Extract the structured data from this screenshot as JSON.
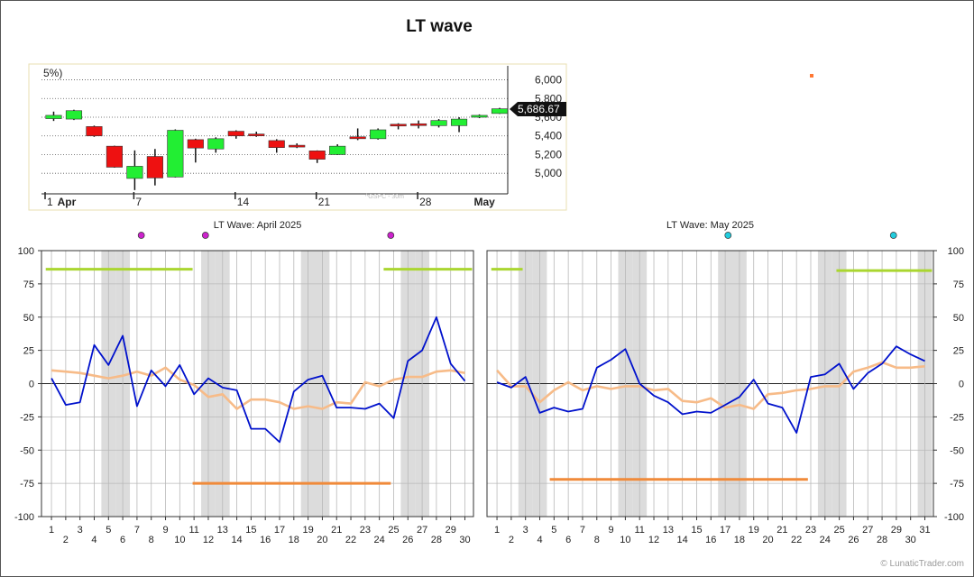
{
  "page": {
    "title": "LT wave",
    "footer": "© LunaticTrader.com"
  },
  "chart_data": [
    {
      "type": "candlestick",
      "partial_label": "5%)",
      "yticks": [
        5000,
        5200,
        5400,
        5600,
        5800,
        6000
      ],
      "ytick_labels": [
        "5,000",
        "5,200",
        "5,400",
        "5,600",
        "5,800",
        "6,000"
      ],
      "ylim": [
        4780,
        6150
      ],
      "last_value_label": "5,686.67",
      "last_value": 5686.67,
      "watermark": "^GSPC - 30m",
      "xtick_labels": [
        {
          "label": "1",
          "bold": false,
          "index": 0
        },
        {
          "label": "Apr",
          "bold": true,
          "index": 0.45
        },
        {
          "label": "7",
          "bold": false,
          "index": 4
        },
        {
          "label": "14",
          "bold": false,
          "index": 9
        },
        {
          "label": "21",
          "bold": false,
          "index": 13
        },
        {
          "label": "28",
          "bold": false,
          "index": 18
        },
        {
          "label": "May",
          "bold": true,
          "index": 21
        }
      ],
      "candles": [
        {
          "o": 5585,
          "h": 5660,
          "l": 5560,
          "c": 5620
        },
        {
          "o": 5580,
          "h": 5680,
          "l": 5570,
          "c": 5670
        },
        {
          "o": 5500,
          "h": 5510,
          "l": 5390,
          "c": 5400
        },
        {
          "o": 5290,
          "h": 5295,
          "l": 5060,
          "c": 5065
        },
        {
          "o": 4945,
          "h": 5245,
          "l": 4820,
          "c": 5075
        },
        {
          "o": 5180,
          "h": 5260,
          "l": 4870,
          "c": 4950
        },
        {
          "o": 4960,
          "h": 5470,
          "l": 4955,
          "c": 5460
        },
        {
          "o": 5360,
          "h": 5370,
          "l": 5115,
          "c": 5270
        },
        {
          "o": 5260,
          "h": 5385,
          "l": 5220,
          "c": 5370
        },
        {
          "o": 5450,
          "h": 5460,
          "l": 5370,
          "c": 5400
        },
        {
          "o": 5420,
          "h": 5445,
          "l": 5390,
          "c": 5405
        },
        {
          "o": 5350,
          "h": 5365,
          "l": 5220,
          "c": 5275
        },
        {
          "o": 5300,
          "h": 5320,
          "l": 5270,
          "c": 5290
        },
        {
          "o": 5240,
          "h": 5245,
          "l": 5110,
          "c": 5150
        },
        {
          "o": 5200,
          "h": 5310,
          "l": 5195,
          "c": 5290
        },
        {
          "o": 5390,
          "h": 5480,
          "l": 5355,
          "c": 5370
        },
        {
          "o": 5370,
          "h": 5480,
          "l": 5360,
          "c": 5465
        },
        {
          "o": 5525,
          "h": 5535,
          "l": 5470,
          "c": 5520
        },
        {
          "o": 5530,
          "h": 5565,
          "l": 5480,
          "c": 5525
        },
        {
          "o": 5510,
          "h": 5580,
          "l": 5490,
          "c": 5565
        },
        {
          "o": 5510,
          "h": 5600,
          "l": 5440,
          "c": 5580
        },
        {
          "o": 5600,
          "h": 5630,
          "l": 5590,
          "c": 5620
        },
        {
          "o": 5640,
          "h": 5700,
          "l": 5635,
          "c": 5690
        }
      ]
    },
    {
      "type": "line",
      "title": "LT Wave: April 2025",
      "ylim": [
        -100,
        100
      ],
      "yticks": [
        -100,
        -75,
        -50,
        -25,
        0,
        25,
        50,
        75,
        100
      ],
      "x": [
        1,
        2,
        3,
        4,
        5,
        6,
        7,
        8,
        9,
        10,
        11,
        12,
        13,
        14,
        15,
        16,
        17,
        18,
        19,
        20,
        21,
        22,
        23,
        24,
        25,
        26,
        27,
        28,
        29,
        30
      ],
      "shaded_days": [
        5,
        6,
        12,
        13,
        19,
        20,
        26,
        27
      ],
      "markers": [
        {
          "x": 7.3,
          "color": "#cc22cc"
        },
        {
          "x": 11.8,
          "color": "#cc22cc"
        },
        {
          "x": 24.8,
          "color": "#cc22cc"
        }
      ],
      "bars": [
        {
          "x0": 0.6,
          "x1": 10.9,
          "y": 86,
          "color": "#aad630"
        },
        {
          "x0": 24.3,
          "x1": 30.5,
          "y": 86,
          "color": "#aad630"
        },
        {
          "x0": 10.9,
          "x1": 24.8,
          "y": -75,
          "color": "#f08a3a"
        }
      ],
      "series": [
        {
          "color": "#0011cc",
          "values": [
            [
              1,
              4
            ],
            [
              2,
              -16
            ],
            [
              3,
              -14
            ],
            [
              4,
              29
            ],
            [
              5,
              14
            ],
            [
              6,
              36
            ],
            [
              7,
              -17
            ],
            [
              8,
              10
            ],
            [
              9,
              -2
            ],
            [
              10,
              14
            ],
            [
              11,
              -8
            ],
            [
              12,
              4
            ],
            [
              13,
              -3
            ],
            [
              14,
              -5
            ],
            [
              15,
              -34
            ],
            [
              16,
              -34
            ],
            [
              17,
              -44
            ],
            [
              18,
              -6
            ],
            [
              19,
              3
            ],
            [
              20,
              6
            ],
            [
              21,
              -18
            ],
            [
              22,
              -18
            ],
            [
              23,
              -19
            ],
            [
              24,
              -15
            ],
            [
              25,
              -26
            ],
            [
              26,
              17
            ],
            [
              27,
              25
            ],
            [
              28,
              50
            ],
            [
              29,
              15
            ],
            [
              30,
              2
            ]
          ]
        },
        {
          "color": "#f7bb88",
          "values": [
            [
              1,
              10
            ],
            [
              2,
              9
            ],
            [
              3,
              8
            ],
            [
              4,
              6
            ],
            [
              5,
              4
            ],
            [
              6,
              6
            ],
            [
              7,
              9
            ],
            [
              8,
              6
            ],
            [
              9,
              12
            ],
            [
              10,
              3
            ],
            [
              11,
              -1
            ],
            [
              12,
              -10
            ],
            [
              13,
              -8
            ],
            [
              14,
              -19
            ],
            [
              15,
              -12
            ],
            [
              16,
              -12
            ],
            [
              17,
              -14
            ],
            [
              18,
              -19
            ],
            [
              19,
              -17
            ],
            [
              20,
              -19
            ],
            [
              21,
              -14
            ],
            [
              22,
              -15
            ],
            [
              23,
              1
            ],
            [
              24,
              -2
            ],
            [
              25,
              3
            ],
            [
              26,
              5
            ],
            [
              27,
              5
            ],
            [
              28,
              9
            ],
            [
              29,
              10
            ],
            [
              30,
              8
            ]
          ]
        }
      ]
    },
    {
      "type": "line",
      "title": "LT Wave: May 2025",
      "ylim": [
        -100,
        100
      ],
      "yticks": [
        -100,
        -75,
        -50,
        -25,
        0,
        25,
        50,
        75,
        100
      ],
      "x": [
        1,
        2,
        3,
        4,
        5,
        6,
        7,
        8,
        9,
        10,
        11,
        12,
        13,
        14,
        15,
        16,
        17,
        18,
        19,
        20,
        21,
        22,
        23,
        24,
        25,
        26,
        27,
        28,
        29,
        30,
        31
      ],
      "shaded_days": [
        3,
        4,
        10,
        11,
        17,
        18,
        24,
        25,
        31
      ],
      "markers": [
        {
          "x": 17.2,
          "color": "#22ccdd"
        },
        {
          "x": 28.8,
          "color": "#22ccdd"
        }
      ],
      "bars": [
        {
          "x0": 0.6,
          "x1": 2.8,
          "y": 86,
          "color": "#aad630"
        },
        {
          "x0": 24.8,
          "x1": 31.5,
          "y": 85,
          "color": "#aad630"
        },
        {
          "x0": 4.7,
          "x1": 22.8,
          "y": -72,
          "color": "#f08a3a"
        }
      ],
      "series": [
        {
          "color": "#0011cc",
          "values": [
            [
              1,
              1
            ],
            [
              2,
              -3
            ],
            [
              3,
              5
            ],
            [
              4,
              -22
            ],
            [
              5,
              -18
            ],
            [
              6,
              -21
            ],
            [
              7,
              -19
            ],
            [
              8,
              12
            ],
            [
              9,
              18
            ],
            [
              10,
              26
            ],
            [
              11,
              0
            ],
            [
              12,
              -9
            ],
            [
              13,
              -14
            ],
            [
              14,
              -23
            ],
            [
              15,
              -21
            ],
            [
              16,
              -22
            ],
            [
              17,
              -16
            ],
            [
              18,
              -10
            ],
            [
              19,
              3
            ],
            [
              20,
              -15
            ],
            [
              21,
              -18
            ],
            [
              22,
              -37
            ],
            [
              23,
              5
            ],
            [
              24,
              7
            ],
            [
              25,
              15
            ],
            [
              26,
              -4
            ],
            [
              27,
              8
            ],
            [
              28,
              15
            ],
            [
              29,
              28
            ],
            [
              30,
              22
            ],
            [
              31,
              17
            ]
          ]
        },
        {
          "color": "#f7bb88",
          "values": [
            [
              1,
              10
            ],
            [
              2,
              -2
            ],
            [
              3,
              -2
            ],
            [
              4,
              -14
            ],
            [
              5,
              -5
            ],
            [
              6,
              1
            ],
            [
              7,
              -5
            ],
            [
              8,
              -2
            ],
            [
              9,
              -4
            ],
            [
              10,
              -2
            ],
            [
              11,
              -2
            ],
            [
              12,
              -5
            ],
            [
              13,
              -4
            ],
            [
              14,
              -13
            ],
            [
              15,
              -14
            ],
            [
              16,
              -11
            ],
            [
              17,
              -18
            ],
            [
              18,
              -16
            ],
            [
              19,
              -19
            ],
            [
              20,
              -8
            ],
            [
              21,
              -7
            ],
            [
              22,
              -5
            ],
            [
              23,
              -4
            ],
            [
              24,
              -2
            ],
            [
              25,
              -2
            ],
            [
              26,
              9
            ],
            [
              27,
              12
            ],
            [
              28,
              16
            ],
            [
              29,
              12
            ],
            [
              30,
              12
            ],
            [
              31,
              13
            ]
          ]
        }
      ]
    }
  ]
}
